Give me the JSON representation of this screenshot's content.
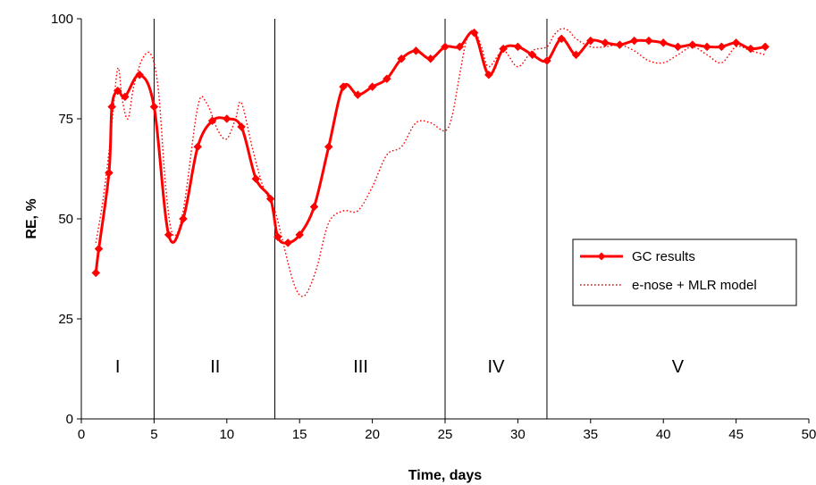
{
  "chart_data": {
    "type": "line",
    "xlabel": "Time, days",
    "ylabel": "RE, %",
    "xlim": [
      0,
      50
    ],
    "ylim": [
      0,
      100
    ],
    "x_ticks": [
      0,
      5,
      10,
      15,
      20,
      25,
      30,
      35,
      40,
      45,
      50
    ],
    "y_ticks": [
      0,
      25,
      50,
      75,
      100
    ],
    "grid": false,
    "legend_position": "right-middle",
    "phase_boundaries": [
      5,
      13.3,
      25,
      32
    ],
    "phases": [
      {
        "label": "I",
        "x": 2.5
      },
      {
        "label": "II",
        "x": 9.2
      },
      {
        "label": "III",
        "x": 19.2
      },
      {
        "label": "IV",
        "x": 28.5
      },
      {
        "label": "V",
        "x": 41
      }
    ],
    "series": [
      {
        "name": "GC results",
        "style": "solid-diamond",
        "color": "#ff0000",
        "points": [
          [
            1.0,
            36.5
          ],
          [
            1.2,
            42.5
          ],
          [
            1.9,
            61.5
          ],
          [
            2.1,
            78
          ],
          [
            2.5,
            82
          ],
          [
            3.0,
            80.5
          ],
          [
            4.0,
            86
          ],
          [
            5.0,
            78
          ],
          [
            6.0,
            46
          ],
          [
            7.0,
            50
          ],
          [
            8.0,
            68
          ],
          [
            9.0,
            74.5
          ],
          [
            10.0,
            75
          ],
          [
            11.0,
            73
          ],
          [
            12.0,
            60
          ],
          [
            13.0,
            55
          ],
          [
            13.5,
            45.5
          ],
          [
            14.2,
            44
          ],
          [
            15.0,
            46
          ],
          [
            16.0,
            53
          ],
          [
            17.0,
            68
          ],
          [
            18.0,
            83
          ],
          [
            19.0,
            81
          ],
          [
            20.0,
            83
          ],
          [
            21.0,
            85
          ],
          [
            22.0,
            90
          ],
          [
            23.0,
            92
          ],
          [
            24.0,
            90
          ],
          [
            25.0,
            93
          ],
          [
            26.0,
            93
          ],
          [
            27.0,
            96.5
          ],
          [
            28.0,
            86
          ],
          [
            29.0,
            92.5
          ],
          [
            30.0,
            93
          ],
          [
            31.0,
            91
          ],
          [
            32.0,
            89.5
          ],
          [
            33.0,
            95
          ],
          [
            34.0,
            91
          ],
          [
            35.0,
            94.5
          ],
          [
            36.0,
            94
          ],
          [
            37.0,
            93.5
          ],
          [
            38.0,
            94.5
          ],
          [
            39.0,
            94.5
          ],
          [
            40.0,
            94
          ],
          [
            41.0,
            93
          ],
          [
            42.0,
            93.5
          ],
          [
            43.0,
            93
          ],
          [
            44.0,
            93
          ],
          [
            45.0,
            94
          ],
          [
            46.0,
            92.5
          ],
          [
            47.0,
            93
          ]
        ]
      },
      {
        "name": "e-nose + MLR model",
        "style": "dotted",
        "color": "#ff0000",
        "points": [
          [
            1.0,
            44
          ],
          [
            1.5,
            55
          ],
          [
            2.0,
            70
          ],
          [
            2.5,
            87.5
          ],
          [
            2.8,
            80
          ],
          [
            3.2,
            75
          ],
          [
            3.6,
            83
          ],
          [
            4.2,
            90
          ],
          [
            4.8,
            91
          ],
          [
            5.3,
            82
          ],
          [
            5.8,
            58
          ],
          [
            6.3,
            46
          ],
          [
            7.0,
            52
          ],
          [
            8.0,
            78
          ],
          [
            8.6,
            79
          ],
          [
            9.4,
            72
          ],
          [
            10.0,
            70
          ],
          [
            10.6,
            75
          ],
          [
            11.0,
            79
          ],
          [
            11.8,
            67
          ],
          [
            12.5,
            58
          ],
          [
            13.3,
            52
          ],
          [
            13.8,
            45
          ],
          [
            14.5,
            35
          ],
          [
            15.0,
            31
          ],
          [
            15.5,
            31.5
          ],
          [
            16.2,
            38
          ],
          [
            17.0,
            49
          ],
          [
            18.0,
            52
          ],
          [
            19.0,
            52
          ],
          [
            20.0,
            58
          ],
          [
            21.0,
            66
          ],
          [
            22.0,
            68
          ],
          [
            23.0,
            74
          ],
          [
            24.0,
            74
          ],
          [
            25.0,
            72
          ],
          [
            25.5,
            76
          ],
          [
            26.0,
            86
          ],
          [
            26.5,
            95
          ],
          [
            27.0,
            97
          ],
          [
            27.5,
            93
          ],
          [
            28.0,
            88
          ],
          [
            29.0,
            92
          ],
          [
            30.0,
            88
          ],
          [
            31.0,
            92
          ],
          [
            32.0,
            93
          ],
          [
            32.5,
            96
          ],
          [
            33.0,
            97.5
          ],
          [
            33.5,
            97
          ],
          [
            34.0,
            95
          ],
          [
            35.0,
            93
          ],
          [
            36.0,
            93
          ],
          [
            37.0,
            93.5
          ],
          [
            38.0,
            92
          ],
          [
            39.0,
            89.5
          ],
          [
            40.0,
            89
          ],
          [
            41.0,
            91
          ],
          [
            42.0,
            93
          ],
          [
            43.0,
            91
          ],
          [
            44.0,
            89
          ],
          [
            45.0,
            93
          ],
          [
            46.0,
            92
          ],
          [
            47.0,
            91
          ]
        ]
      }
    ]
  }
}
